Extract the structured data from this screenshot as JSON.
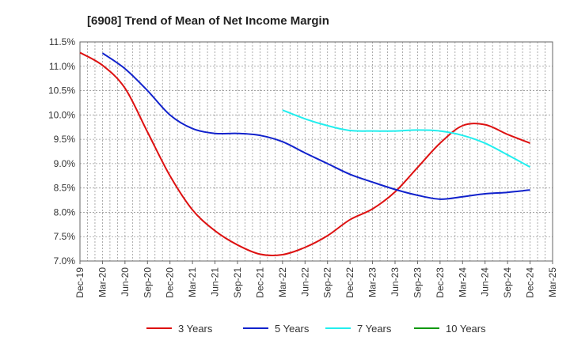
{
  "chart_data": {
    "type": "line",
    "title": "[6908]  Trend of Mean of Net Income Margin",
    "xlabel": "",
    "ylabel": "",
    "ylim": [
      7.0,
      11.5
    ],
    "y_ticks": [
      "7.0%",
      "7.5%",
      "8.0%",
      "8.5%",
      "9.0%",
      "9.5%",
      "10.0%",
      "10.5%",
      "11.0%",
      "11.5%"
    ],
    "y_tick_values": [
      7.0,
      7.5,
      8.0,
      8.5,
      9.0,
      9.5,
      10.0,
      10.5,
      11.0,
      11.5
    ],
    "x_ticks": [
      "Dec-19",
      "Mar-20",
      "Jun-20",
      "Sep-20",
      "Dec-20",
      "Mar-21",
      "Jun-21",
      "Sep-21",
      "Dec-21",
      "Mar-22",
      "Jun-22",
      "Sep-22",
      "Dec-22",
      "Mar-23",
      "Jun-23",
      "Sep-23",
      "Dec-23",
      "Mar-24",
      "Jun-24",
      "Sep-24",
      "Dec-24",
      "Mar-25"
    ],
    "grid": true,
    "legend_position": "bottom",
    "series": [
      {
        "name": "3 Years",
        "color": "#dd1111",
        "points": [
          [
            0,
            11.28
          ],
          [
            1,
            11.02
          ],
          [
            2,
            10.55
          ],
          [
            3,
            9.65
          ],
          [
            4,
            8.75
          ],
          [
            5,
            8.05
          ],
          [
            6,
            7.62
          ],
          [
            7,
            7.33
          ],
          [
            8,
            7.14
          ],
          [
            9,
            7.13
          ],
          [
            10,
            7.28
          ],
          [
            11,
            7.52
          ],
          [
            12,
            7.85
          ],
          [
            13,
            8.07
          ],
          [
            14,
            8.42
          ],
          [
            15,
            8.92
          ],
          [
            16,
            9.42
          ],
          [
            17,
            9.78
          ],
          [
            18,
            9.8
          ],
          [
            19,
            9.6
          ],
          [
            20,
            9.42
          ]
        ]
      },
      {
        "name": "5 Years",
        "color": "#1122cc",
        "points": [
          [
            1,
            11.27
          ],
          [
            2,
            10.95
          ],
          [
            3,
            10.5
          ],
          [
            4,
            10.0
          ],
          [
            5,
            9.72
          ],
          [
            6,
            9.62
          ],
          [
            7,
            9.62
          ],
          [
            8,
            9.58
          ],
          [
            9,
            9.45
          ],
          [
            10,
            9.22
          ],
          [
            11,
            9.0
          ],
          [
            12,
            8.78
          ],
          [
            13,
            8.62
          ],
          [
            14,
            8.47
          ],
          [
            15,
            8.35
          ],
          [
            16,
            8.27
          ],
          [
            17,
            8.32
          ],
          [
            18,
            8.38
          ],
          [
            19,
            8.41
          ],
          [
            20,
            8.46
          ]
        ]
      },
      {
        "name": "7 Years",
        "color": "#22eeee",
        "points": [
          [
            9,
            10.1
          ],
          [
            10,
            9.92
          ],
          [
            11,
            9.78
          ],
          [
            12,
            9.68
          ],
          [
            13,
            9.67
          ],
          [
            14,
            9.67
          ],
          [
            15,
            9.69
          ],
          [
            16,
            9.67
          ],
          [
            17,
            9.58
          ],
          [
            18,
            9.42
          ],
          [
            19,
            9.18
          ],
          [
            20,
            8.93
          ]
        ]
      },
      {
        "name": "10 Years",
        "color": "#119911",
        "points": []
      }
    ]
  }
}
